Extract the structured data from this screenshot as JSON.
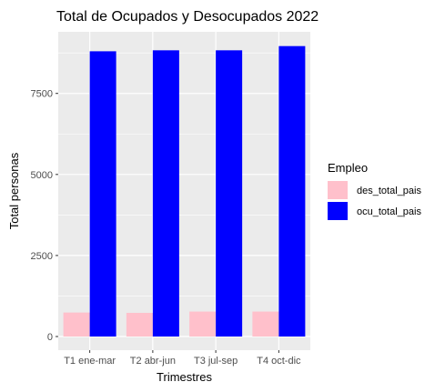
{
  "chart_data": {
    "type": "bar",
    "title": "Total de Ocupados y Desocupados 2022",
    "xlabel": "Trimestres",
    "ylabel": "Total personas",
    "categories": [
      "T1 ene-mar",
      "T2 abr-jun",
      "T3 jul-sep",
      "T4 oct-dic"
    ],
    "series": [
      {
        "name": "des_total_pais",
        "color": "#FFC0CB",
        "values": [
          740,
          730,
          770,
          770
        ]
      },
      {
        "name": "ocu_total_pais",
        "color": "#0000FF",
        "values": [
          8800,
          8830,
          8830,
          8960
        ]
      }
    ],
    "ylim": [
      0,
      9400
    ],
    "yticks": [
      0,
      2500,
      5000,
      7500
    ],
    "grid": true,
    "legend": {
      "title": "Empleo",
      "placement": "right"
    },
    "panel_background": "#EBEBEB",
    "grid_color": "#FFFFFF"
  }
}
